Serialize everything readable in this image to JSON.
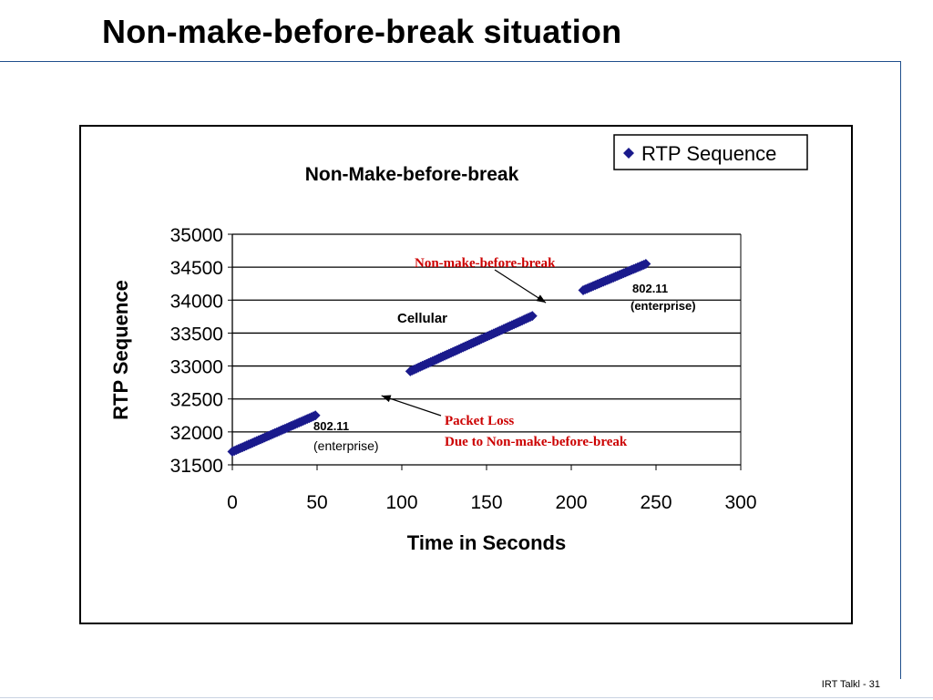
{
  "slide": {
    "title": "Non-make-before-break situation",
    "footer": "IRT Talkl - 31"
  },
  "chart_data": {
    "type": "scatter",
    "title": "Non-Make-before-break",
    "xlabel": "Time in Seconds",
    "ylabel": "RTP Sequence",
    "xlim": [
      0,
      300
    ],
    "ylim": [
      31500,
      35000
    ],
    "x_ticks": [
      "0",
      "50",
      "100",
      "150",
      "200",
      "250",
      "300"
    ],
    "y_ticks": [
      "31500",
      "32000",
      "32500",
      "33000",
      "33500",
      "34000",
      "34500",
      "35000"
    ],
    "grid": "horizontal",
    "legend": {
      "position": "top-right",
      "entries": [
        "RTP Sequence"
      ]
    },
    "series": [
      {
        "name": "RTP Sequence",
        "color": "#1a1a8c",
        "marker": "diamond",
        "segments": [
          {
            "x": [
              0,
              49
            ],
            "y": [
              31700,
              32250
            ]
          },
          {
            "x": [
              105,
              177
            ],
            "y": [
              32920,
              33760
            ]
          },
          {
            "x": [
              207,
              244
            ],
            "y": [
              34150,
              34550
            ]
          }
        ]
      }
    ],
    "annotations": [
      {
        "text": "Non-make-before-break",
        "color": "#cc0000",
        "arrow_to": [
          185,
          33960
        ]
      },
      {
        "text": "Cellular",
        "color": "#000000"
      },
      {
        "text": "802.11",
        "color": "#000000"
      },
      {
        "text": "(enterprise)",
        "color": "#000000"
      },
      {
        "text": "802.11",
        "color": "#000000"
      },
      {
        "text": "(enterprise)",
        "color": "#000000"
      },
      {
        "text": "Packet Loss",
        "color": "#cc0000",
        "arrow_to": [
          88,
          32550
        ]
      },
      {
        "text": "Due to Non-make-before-break",
        "color": "#cc0000"
      }
    ]
  }
}
